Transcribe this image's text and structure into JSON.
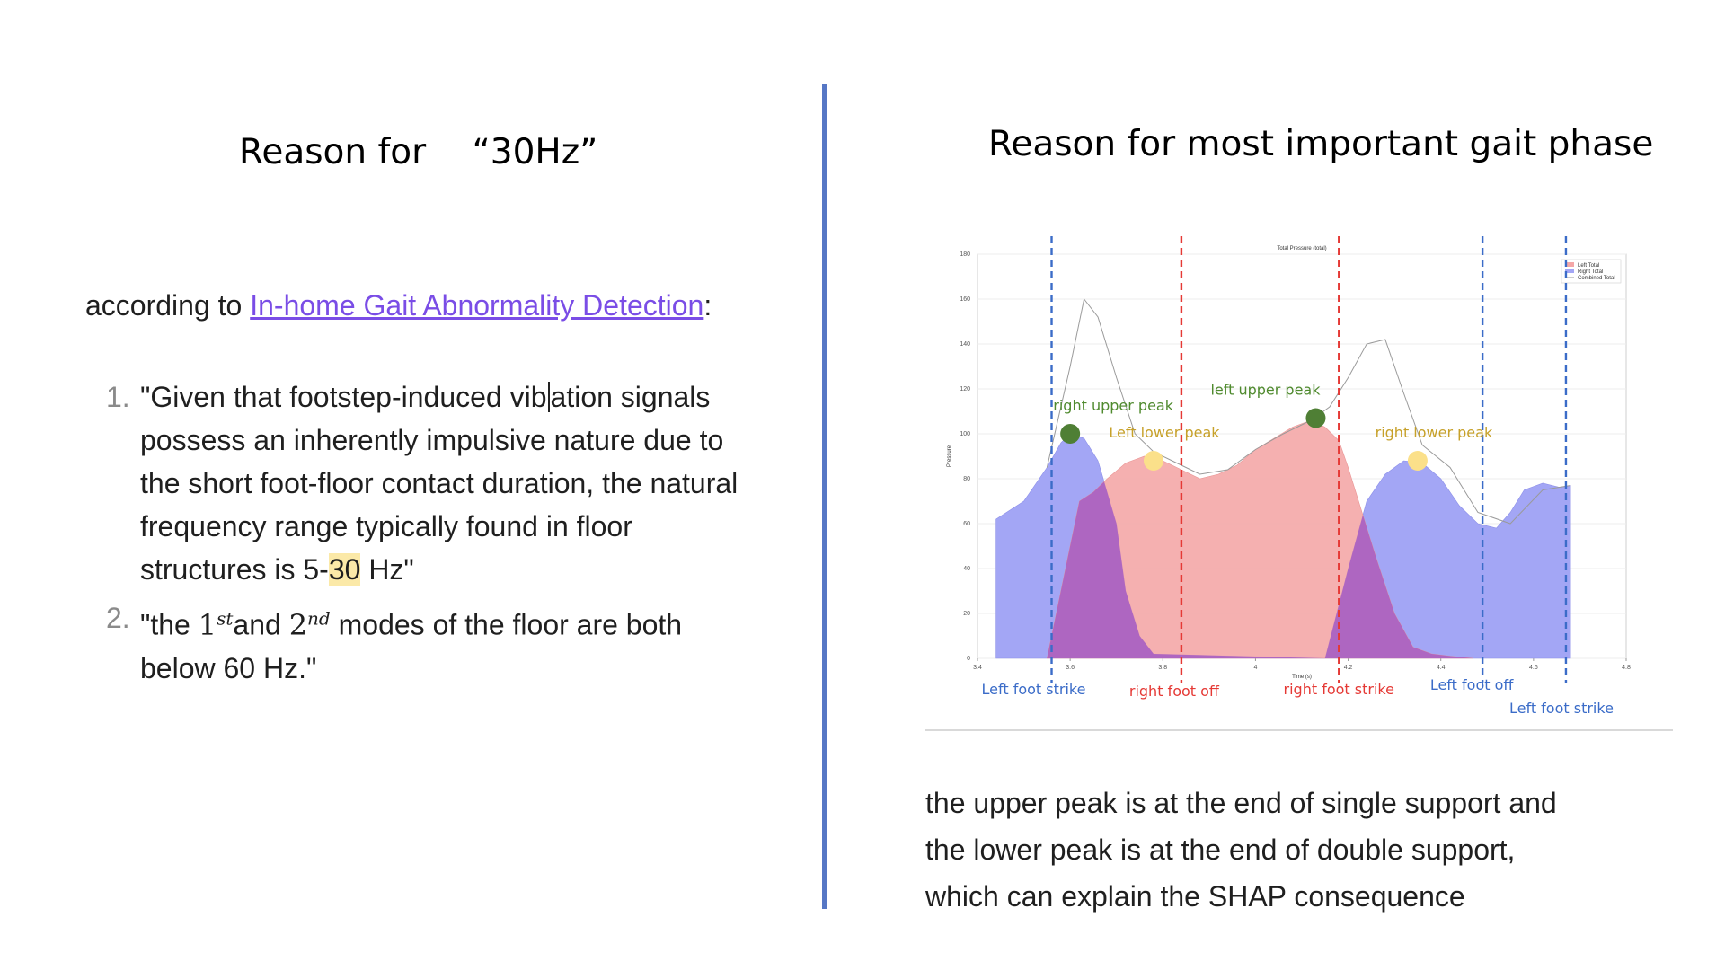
{
  "left": {
    "title": "Reason for 　“30Hz”",
    "intro_prefix": "according to ",
    "intro_link": "In-home Gait Abnormality Detection",
    "intro_suffix": ":",
    "items": [
      {
        "num": "1.",
        "line1_a": "\"Given that footstep-induced vib",
        "line1_b": "ation signals",
        "line2": "possess an inherently impulsive nature due to",
        "line3": "the short foot-floor contact duration,  the natural",
        "line4": "frequency range typically found in floor",
        "line5_a": "structures is 5-",
        "line5_hl": "30",
        "line5_b": " Hz\""
      },
      {
        "num": "2.",
        "line1_a": "\"the ",
        "m1": "1",
        "m1_sup": "st",
        "line1_b": "and ",
        "m2": "2",
        "m2_sup": "nd",
        "line1_c": " modes of the floor are both",
        "line2": "below 60 Hz.\""
      }
    ]
  },
  "right": {
    "title": "Reason for most important gait phase",
    "explanation": [
      "the upper peak is at the end of single support and",
      "the lower peak is at the end of double support,",
      "which can explain the SHAP consequence"
    ]
  },
  "chart_data": {
    "type": "area",
    "title": "Total Pressure (total)",
    "xlabel": "Time (s)",
    "ylabel": "Pressure",
    "xlim": [
      3.4,
      4.8
    ],
    "ylim": [
      0,
      180
    ],
    "xticks": [
      "3.4",
      "3.6",
      "3.8",
      "4",
      "4.2",
      "4.4",
      "4.6",
      "4.8"
    ],
    "yticks": [
      "0",
      "20",
      "40",
      "60",
      "80",
      "100",
      "120",
      "140",
      "160",
      "180"
    ],
    "legend": [
      "Left Total",
      "Right Total",
      "Combined Total"
    ],
    "legend_position": "top-right",
    "colors": {
      "left": "#f4a7a7",
      "right": "#a3a6f5",
      "overlap": "#a35bc4",
      "combined": "#9a9a9a",
      "strike": "#3b6cc8",
      "off": "#e53935",
      "upper_peak": "#4f7f35",
      "lower_peak": "#fbe08a",
      "upper_label": "#4f8a2e",
      "lower_label": "#c7a12a"
    },
    "series": [
      {
        "name": "Right Total",
        "x": [
          3.44,
          3.5,
          3.55,
          3.58,
          3.6,
          3.63,
          3.66,
          3.7,
          3.72,
          3.75,
          3.78,
          4.15,
          4.2,
          4.24,
          4.28,
          4.32,
          4.36,
          4.4,
          4.44,
          4.48,
          4.52,
          4.55,
          4.58,
          4.62,
          4.66,
          4.68
        ],
        "y": [
          62,
          70,
          85,
          96,
          100,
          98,
          88,
          60,
          30,
          10,
          2,
          0,
          40,
          70,
          82,
          88,
          87,
          80,
          68,
          60,
          58,
          65,
          75,
          78,
          76,
          77
        ]
      },
      {
        "name": "Left Total",
        "x": [
          3.55,
          3.58,
          3.62,
          3.65,
          3.68,
          3.72,
          3.76,
          3.8,
          3.84,
          3.88,
          3.92,
          3.96,
          4.0,
          4.04,
          4.08,
          4.12,
          4.15,
          4.18,
          4.2,
          4.23,
          4.26,
          4.3,
          4.34,
          4.38,
          4.42,
          4.47
        ],
        "y": [
          0,
          30,
          70,
          74,
          80,
          87,
          90,
          88,
          84,
          80,
          82,
          86,
          93,
          98,
          103,
          106,
          103,
          97,
          85,
          65,
          45,
          20,
          5,
          2,
          1,
          0
        ]
      },
      {
        "name": "Combined Total",
        "x": [
          3.55,
          3.6,
          3.63,
          3.66,
          3.7,
          3.74,
          3.78,
          3.82,
          3.88,
          3.94,
          4.0,
          4.06,
          4.12,
          4.16,
          4.2,
          4.24,
          4.28,
          4.32,
          4.36,
          4.42,
          4.48,
          4.55,
          4.62,
          4.68
        ],
        "y": [
          85,
          130,
          160,
          152,
          125,
          100,
          92,
          88,
          82,
          84,
          93,
          100,
          106,
          112,
          125,
          140,
          142,
          118,
          95,
          85,
          65,
          60,
          75,
          77
        ]
      }
    ],
    "events": [
      {
        "label": "Left foot strike",
        "x": 3.56,
        "kind": "strike"
      },
      {
        "label": "right foot off",
        "x": 3.84,
        "kind": "off"
      },
      {
        "label": "right foot strike",
        "x": 4.18,
        "kind": "off"
      },
      {
        "label": "Left foot off",
        "x": 4.49,
        "kind": "strike"
      },
      {
        "label": "Left foot strike",
        "x": 4.67,
        "kind": "strike"
      }
    ],
    "peaks": [
      {
        "label": "right upper peak",
        "x": 3.6,
        "y": 100,
        "kind": "upper"
      },
      {
        "label": "Left lower peak",
        "x": 3.78,
        "y": 88,
        "kind": "lower"
      },
      {
        "label": "left upper peak",
        "x": 4.13,
        "y": 107,
        "kind": "upper"
      },
      {
        "label": "right lower peak",
        "x": 4.35,
        "y": 88,
        "kind": "lower"
      }
    ]
  }
}
